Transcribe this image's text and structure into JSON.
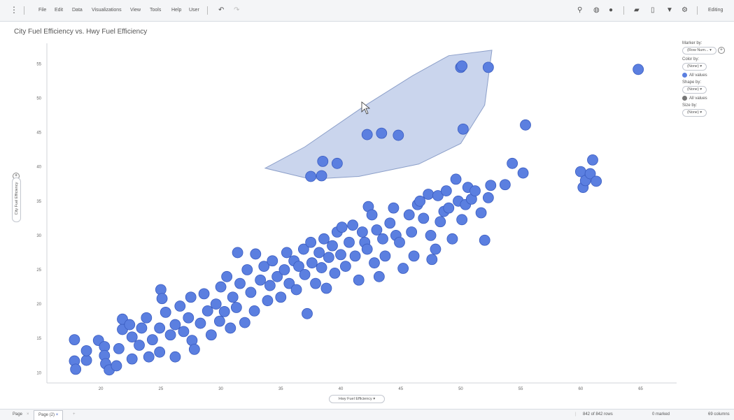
{
  "menu": {
    "items": [
      "File",
      "Edit",
      "Data",
      "Visualizations",
      "View",
      "Tools",
      "Help",
      "User"
    ],
    "mode": "Editing"
  },
  "viz": {
    "title": "City Fuel Efficiency vs. Hwy Fuel Efficiency"
  },
  "legend": {
    "marker_by_label": "Marker by:",
    "marker_by_value": "(Row Num...",
    "color_by_label": "Color by:",
    "color_by_value": "(None)",
    "color_all": "All values",
    "shape_by_label": "Shape by:",
    "shape_by_value": "(None)",
    "shape_all": "All values",
    "size_by_label": "Size by:",
    "size_by_value": "(None)"
  },
  "axes": {
    "x_selector": "Hwy Fuel Efficiency",
    "y_selector": "City Fuel Efficiency"
  },
  "status": {
    "page_tab": "Page",
    "page2_tab": "Page (2)",
    "rows": "842 of 842 rows",
    "marked": "0 marked",
    "columns": "69 columns"
  },
  "colors": {
    "marker": "#5b7fe0",
    "marker_stroke": "#3a5cc0",
    "lasso_fill": "#c7d3ec",
    "lasso_stroke": "#8c9fc9"
  },
  "chart_data": {
    "type": "scatter",
    "title": "City Fuel Efficiency vs. Hwy Fuel Efficiency",
    "xlabel": "Hwy Fuel Efficiency",
    "ylabel": "City Fuel Efficiency",
    "xlim": [
      15.5,
      68
    ],
    "ylim": [
      8.5,
      58
    ],
    "xticks": [
      20,
      25,
      30,
      35,
      40,
      45,
      50,
      55,
      60,
      65
    ],
    "yticks": [
      10,
      15,
      20,
      25,
      30,
      35,
      40,
      45,
      50,
      55
    ],
    "grid": false,
    "points": [
      [
        17.8,
        14.8
      ],
      [
        17.8,
        11.7
      ],
      [
        17.9,
        10.5
      ],
      [
        18.8,
        11.8
      ],
      [
        18.8,
        13.2
      ],
      [
        19.8,
        14.7
      ],
      [
        20.3,
        13.8
      ],
      [
        20.3,
        12.5
      ],
      [
        20.4,
        11.3
      ],
      [
        20.7,
        10.4
      ],
      [
        21.3,
        11.0
      ],
      [
        21.5,
        13.5
      ],
      [
        21.8,
        16.3
      ],
      [
        21.8,
        17.8
      ],
      [
        22.4,
        17.0
      ],
      [
        22.6,
        15.2
      ],
      [
        22.6,
        12.0
      ],
      [
        23.2,
        14.0
      ],
      [
        23.4,
        16.5
      ],
      [
        23.8,
        18.0
      ],
      [
        24.0,
        12.3
      ],
      [
        24.3,
        14.8
      ],
      [
        24.9,
        16.5
      ],
      [
        24.9,
        13.0
      ],
      [
        25.0,
        22.1
      ],
      [
        25.1,
        20.8
      ],
      [
        25.4,
        18.8
      ],
      [
        25.8,
        15.5
      ],
      [
        26.2,
        17.0
      ],
      [
        26.2,
        12.3
      ],
      [
        26.6,
        19.7
      ],
      [
        26.9,
        16.0
      ],
      [
        27.3,
        18.0
      ],
      [
        27.5,
        21.0
      ],
      [
        27.6,
        14.7
      ],
      [
        27.8,
        13.4
      ],
      [
        28.3,
        17.2
      ],
      [
        28.6,
        21.5
      ],
      [
        28.9,
        19.0
      ],
      [
        29.2,
        15.5
      ],
      [
        29.6,
        20.0
      ],
      [
        29.9,
        17.5
      ],
      [
        30.0,
        22.5
      ],
      [
        30.3,
        18.9
      ],
      [
        30.5,
        24.0
      ],
      [
        30.8,
        16.5
      ],
      [
        31.0,
        21.0
      ],
      [
        31.3,
        19.5
      ],
      [
        31.4,
        27.5
      ],
      [
        31.6,
        23.0
      ],
      [
        32.0,
        17.3
      ],
      [
        32.2,
        25.0
      ],
      [
        32.5,
        21.7
      ],
      [
        32.8,
        19.0
      ],
      [
        32.9,
        27.3
      ],
      [
        33.3,
        23.5
      ],
      [
        33.6,
        25.5
      ],
      [
        33.9,
        20.5
      ],
      [
        34.1,
        22.7
      ],
      [
        34.3,
        26.3
      ],
      [
        34.7,
        24.0
      ],
      [
        35.0,
        21.0
      ],
      [
        35.3,
        25.0
      ],
      [
        35.5,
        27.5
      ],
      [
        35.7,
        23.0
      ],
      [
        36.1,
        26.3
      ],
      [
        36.3,
        22.1
      ],
      [
        36.5,
        25.5
      ],
      [
        36.9,
        28.0
      ],
      [
        37.0,
        24.3
      ],
      [
        37.2,
        18.6
      ],
      [
        37.5,
        29.0
      ],
      [
        37.6,
        26.0
      ],
      [
        37.9,
        23.0
      ],
      [
        38.2,
        27.5
      ],
      [
        38.4,
        25.3
      ],
      [
        38.6,
        29.5
      ],
      [
        38.8,
        22.3
      ],
      [
        39.0,
        26.8
      ],
      [
        39.3,
        28.5
      ],
      [
        39.5,
        24.5
      ],
      [
        39.7,
        30.5
      ],
      [
        40.0,
        27.2
      ],
      [
        40.1,
        31.2
      ],
      [
        40.4,
        25.5
      ],
      [
        40.7,
        29.0
      ],
      [
        41.0,
        31.5
      ],
      [
        41.2,
        27.0
      ],
      [
        41.5,
        23.5
      ],
      [
        41.8,
        30.5
      ],
      [
        42.0,
        29.0
      ],
      [
        42.2,
        28.0
      ],
      [
        42.3,
        34.2
      ],
      [
        42.6,
        33.0
      ],
      [
        42.8,
        26.0
      ],
      [
        43.0,
        30.8
      ],
      [
        43.2,
        24.0
      ],
      [
        43.5,
        29.5
      ],
      [
        43.7,
        27.0
      ],
      [
        44.1,
        31.8
      ],
      [
        44.4,
        34.0
      ],
      [
        44.6,
        30.0
      ],
      [
        44.9,
        29.0
      ],
      [
        45.2,
        25.2
      ],
      [
        45.7,
        33.0
      ],
      [
        45.9,
        30.5
      ],
      [
        46.1,
        27.0
      ],
      [
        46.4,
        34.5
      ],
      [
        46.6,
        35.0
      ],
      [
        46.9,
        32.5
      ],
      [
        47.3,
        36.0
      ],
      [
        47.5,
        30.0
      ],
      [
        47.6,
        26.5
      ],
      [
        47.9,
        28.0
      ],
      [
        48.1,
        35.8
      ],
      [
        48.3,
        32.0
      ],
      [
        48.6,
        33.5
      ],
      [
        48.8,
        36.5
      ],
      [
        49.0,
        34.0
      ],
      [
        49.3,
        29.5
      ],
      [
        49.6,
        38.2
      ],
      [
        49.8,
        35.0
      ],
      [
        50.1,
        32.3
      ],
      [
        50.4,
        34.5
      ],
      [
        50.6,
        37.0
      ],
      [
        50.9,
        35.3
      ],
      [
        51.2,
        36.5
      ],
      [
        51.7,
        33.3
      ],
      [
        52.0,
        29.3
      ],
      [
        52.3,
        35.5
      ],
      [
        52.5,
        37.3
      ],
      [
        53.7,
        37.4
      ],
      [
        54.3,
        40.5
      ],
      [
        55.2,
        39.1
      ],
      [
        60.0,
        39.3
      ],
      [
        60.2,
        37.0
      ],
      [
        60.4,
        38.0
      ],
      [
        60.8,
        39.0
      ],
      [
        61.0,
        41.0
      ],
      [
        61.3,
        37.9
      ],
      [
        37.5,
        38.6
      ],
      [
        38.4,
        38.7
      ],
      [
        38.5,
        40.8
      ],
      [
        39.7,
        40.5
      ],
      [
        42.2,
        44.7
      ],
      [
        43.4,
        44.9
      ],
      [
        44.8,
        44.6
      ],
      [
        50.0,
        54.5
      ],
      [
        50.1,
        54.7
      ],
      [
        52.3,
        54.5
      ],
      [
        50.2,
        45.5
      ],
      [
        55.4,
        46.1
      ],
      [
        64.8,
        54.2
      ]
    ],
    "lasso_selection": [
      [
        33.7,
        39.8
      ],
      [
        37,
        42.9
      ],
      [
        42,
        48.9
      ],
      [
        46,
        53.3
      ],
      [
        49,
        56.2
      ],
      [
        52.6,
        57.0
      ],
      [
        52.0,
        49.0
      ],
      [
        50.0,
        43.4
      ],
      [
        46.5,
        40.4
      ],
      [
        41.5,
        38.6
      ],
      [
        37.5,
        38.2
      ],
      [
        33.7,
        39.8
      ]
    ]
  }
}
